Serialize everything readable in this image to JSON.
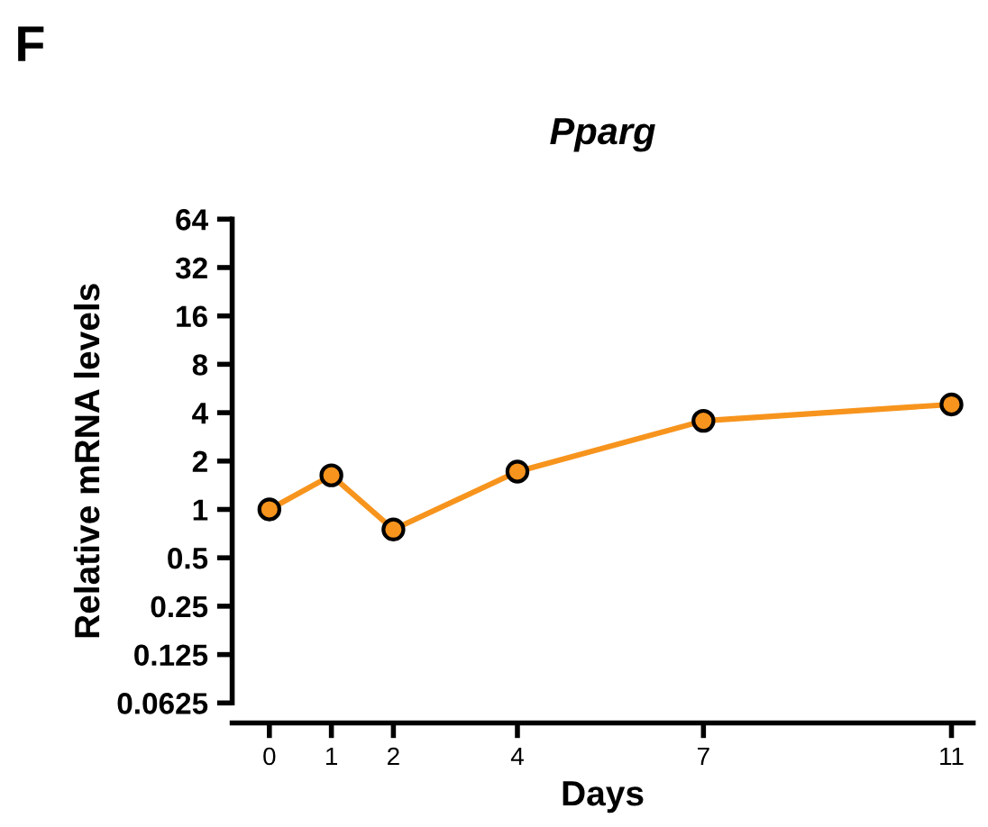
{
  "chart_data": {
    "type": "line",
    "title": "Pparg",
    "xlabel": "Days",
    "ylabel": "Relative mRNA levels",
    "annotations": [
      "F"
    ],
    "x": [
      0,
      1,
      2,
      4,
      7,
      11
    ],
    "series": [
      {
        "color": "#f7941d",
        "values": [
          1.0,
          1.63,
          0.75,
          1.72,
          3.56,
          4.5
        ]
      }
    ],
    "log": "y",
    "marker": "circle",
    "line_style": "solid",
    "grid": false,
    "legend": false,
    "xlim": [
      -0.6,
      11.35
    ],
    "xticks": [
      0,
      1,
      2,
      4,
      7,
      11
    ],
    "ylim": [
      0.0625,
      64
    ],
    "yticks": [
      0.0625,
      0.125,
      0.25,
      0.5,
      1,
      2,
      4,
      8,
      16,
      32,
      64
    ]
  }
}
